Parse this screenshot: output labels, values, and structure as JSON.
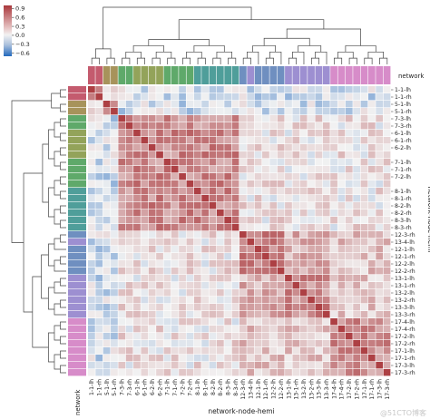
{
  "chart_data": {
    "type": "heatmap",
    "subtype": "clustermap",
    "colorbar": {
      "ticks": [
        0.9,
        0.6,
        0.3,
        0.0,
        -0.3,
        -0.6
      ],
      "ticklabels": [
        "0.9",
        "0.6",
        "0.3",
        "0.0",
        "−0.3",
        "−0.6"
      ],
      "min": -0.7,
      "max": 1.0,
      "cmap": "vlag",
      "colors": {
        "neg": "#2369bd",
        "mid": "#f2f2f2",
        "pos": "#a9373b"
      }
    },
    "xlabel": "network-node-hemi",
    "ylabel": "network-node-hemi",
    "col_colors_label": "network",
    "row_colors_label": "network",
    "labels": [
      "1-1-lh",
      "1-1-rh",
      "5-1-lh",
      "5-1-rh",
      "7-3-lh",
      "7-3-rh",
      "6-1-lh",
      "6-1-rh",
      "6-2-lh",
      "6-2-rh",
      "7-1-lh",
      "7-1-rh",
      "7-2-lh",
      "7-2-rh",
      "8-1-lh",
      "8-1-rh",
      "8-2-lh",
      "8-2-rh",
      "8-3-lh",
      "8-3-rh",
      "12-3-rh",
      "13-4-lh",
      "12-1-lh",
      "12-1-rh",
      "12-2-lh",
      "12-2-rh",
      "13-1-lh",
      "13-1-rh",
      "13-2-lh",
      "13-2-rh",
      "13-3-lh",
      "13-3-rh",
      "17-4-lh",
      "17-4-rh",
      "17-2-lh",
      "17-2-rh",
      "17-1-lh",
      "17-1-rh",
      "17-3-lh",
      "17-3-rh"
    ],
    "xticks_shown": [
      "1-1-lh",
      "1-1-rh",
      "5-1-lh",
      "5-1-rh",
      "7-3-lh",
      "7-3-rh",
      "6-1-lh",
      "6-1-rh",
      "6-2-lh",
      "6-2-rh",
      "7-1-lh",
      "7-1-rh",
      "7-2-lh",
      "7-2-rh",
      "8-1-lh",
      "8-1-rh",
      "8-2-lh",
      "8-2-rh",
      "8-3-lh",
      "8-3-rh",
      "12-3-rh",
      "13-4-lh",
      "12-1-lh",
      "12-1-rh",
      "12-2-lh",
      "12-2-rh",
      "13-1-lh",
      "13-1-rh",
      "13-2-lh",
      "13-2-rh",
      "13-3-lh",
      "13-3-rh",
      "17-4-lh",
      "17-4-rh",
      "17-2-lh",
      "17-2-rh",
      "17-1-lh",
      "17-1-rh",
      "17-3-lh",
      "17-3-rh"
    ],
    "yticks_shown": [
      "1-1-lh",
      "1-1-rh",
      "5-1-lh",
      "5-1-rh",
      "7-3-lh",
      "7-3-rh",
      "6-1-lh",
      "6-1-rh",
      "6-2-lh",
      "7-1-lh",
      "7-1-rh",
      "7-2-lh",
      "8-1-lh",
      "8-1-rh",
      "8-2-lh",
      "8-2-rh",
      "8-3-lh",
      "8-3-rh",
      "12-3-rh",
      "13-4-lh",
      "12-1-lh",
      "12-1-rh",
      "12-2-lh",
      "12-2-rh",
      "13-1-lh",
      "13-1-rh",
      "13-2-lh",
      "13-2-rh",
      "13-3-lh",
      "13-3-rh",
      "17-4-lh",
      "17-4-rh",
      "17-2-lh",
      "17-2-rh",
      "17-1-lh",
      "17-1-rh",
      "17-3-lh",
      "17-3-rh"
    ],
    "network_of_label": [
      1,
      1,
      5,
      5,
      7,
      7,
      6,
      6,
      6,
      6,
      7,
      7,
      7,
      7,
      8,
      8,
      8,
      8,
      8,
      8,
      12,
      13,
      12,
      12,
      12,
      12,
      13,
      13,
      13,
      13,
      13,
      13,
      17,
      17,
      17,
      17,
      17,
      17,
      17,
      17
    ],
    "network_colors": {
      "1": "#c45b6e",
      "5": "#a7935b",
      "6": "#93a35a",
      "7": "#5fa96a",
      "8": "#4f9e9a",
      "12": "#6f8fc0",
      "13": "#9d8fd1",
      "17": "#d78cc9"
    },
    "groups": [
      [
        0,
        1
      ],
      [
        2,
        3
      ],
      [
        4,
        19
      ],
      [
        20,
        25
      ],
      [
        26,
        31
      ],
      [
        32,
        39
      ]
    ],
    "approx_block_correlation": {
      "within_group": 0.55,
      "1-5_vs_rest": -0.1,
      "7-8_vs_12-17": 0.1,
      "12-13_vs_17": 0.25
    }
  },
  "watermark": "@51CTO博客"
}
